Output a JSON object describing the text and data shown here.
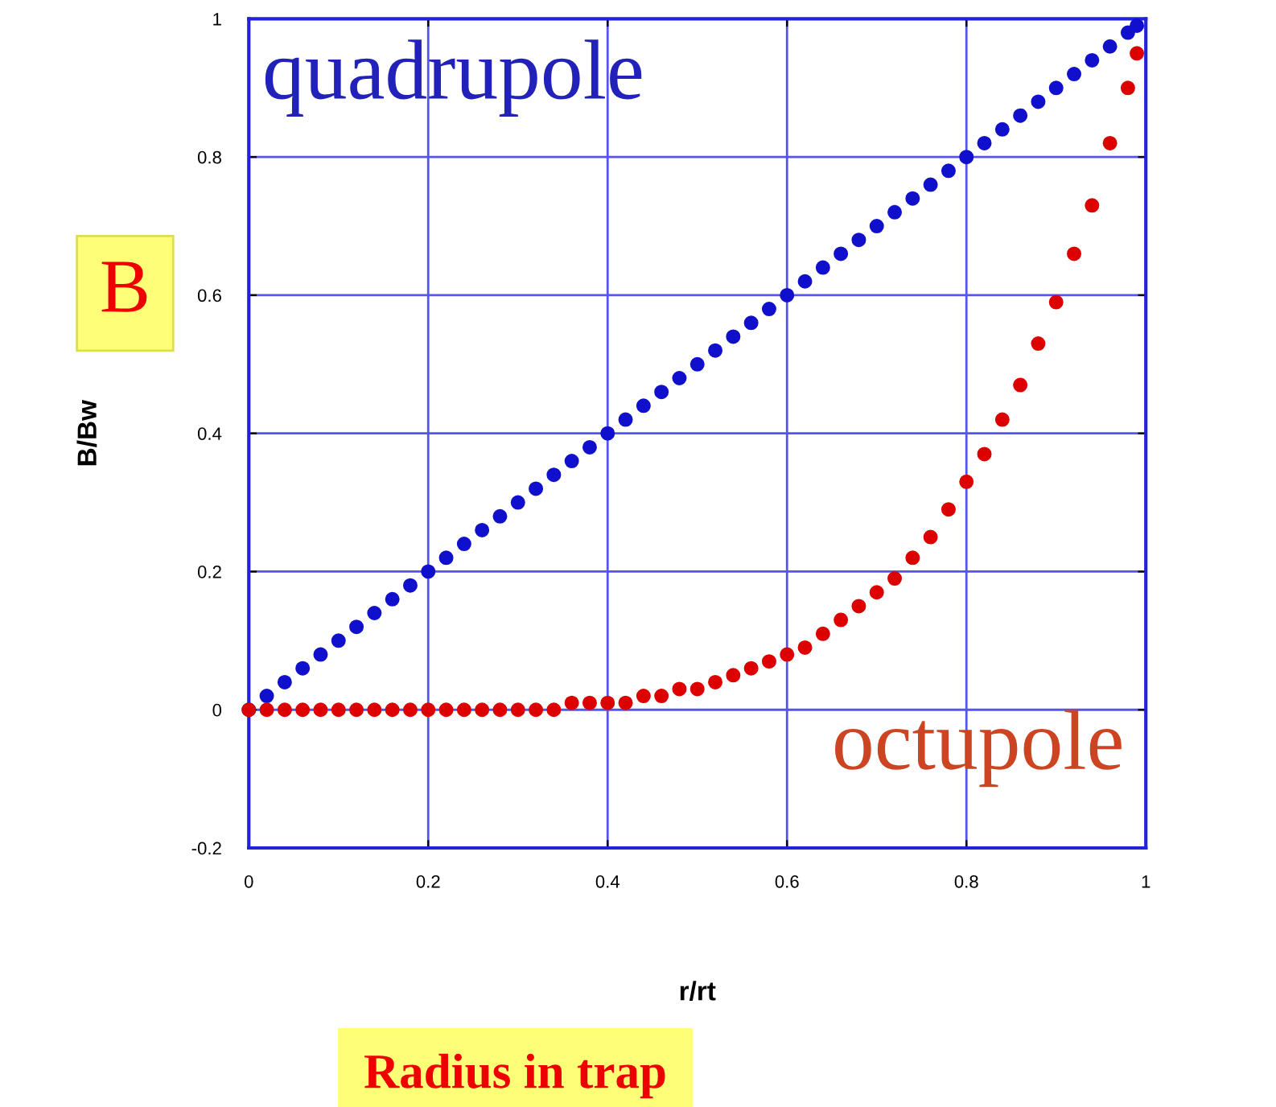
{
  "chart_data": {
    "type": "scatter",
    "xlabel": "r/rt",
    "ylabel": "B/Bw",
    "x": [
      0,
      0.02,
      0.04,
      0.06,
      0.08,
      0.1,
      0.12,
      0.14,
      0.16,
      0.18,
      0.2,
      0.22,
      0.24,
      0.26,
      0.28,
      0.3,
      0.32,
      0.34,
      0.36,
      0.38,
      0.4,
      0.42,
      0.44,
      0.46,
      0.48,
      0.5,
      0.52,
      0.54,
      0.56,
      0.58,
      0.6,
      0.62,
      0.64,
      0.66,
      0.68,
      0.7,
      0.72,
      0.74,
      0.76,
      0.78,
      0.8,
      0.82,
      0.84,
      0.86,
      0.88,
      0.9,
      0.92,
      0.94,
      0.96,
      0.98,
      0.99
    ],
    "series": [
      {
        "color": "#1010cc",
        "values": [
          0,
          0.02,
          0.04,
          0.06,
          0.08,
          0.1,
          0.12,
          0.14,
          0.16,
          0.18,
          0.2,
          0.22,
          0.24,
          0.26,
          0.28,
          0.3,
          0.32,
          0.34,
          0.36,
          0.38,
          0.4,
          0.42,
          0.44,
          0.46,
          0.48,
          0.5,
          0.52,
          0.54,
          0.56,
          0.58,
          0.6,
          0.62,
          0.64,
          0.66,
          0.68,
          0.7,
          0.72,
          0.74,
          0.76,
          0.78,
          0.8,
          0.82,
          0.84,
          0.86,
          0.88,
          0.9,
          0.92,
          0.94,
          0.96,
          0.98,
          0.99
        ]
      },
      {
        "color": "#dd0000",
        "values": [
          0,
          0,
          0,
          0,
          0,
          0,
          0,
          0,
          0,
          0,
          0,
          0,
          0,
          0,
          0,
          0,
          0,
          0,
          0.01,
          0.01,
          0.01,
          0.01,
          0.02,
          0.02,
          0.03,
          0.03,
          0.04,
          0.05,
          0.06,
          0.07,
          0.08,
          0.09,
          0.11,
          0.13,
          0.15,
          0.17,
          0.19,
          0.22,
          0.25,
          0.29,
          0.33,
          0.37,
          0.42,
          0.47,
          0.53,
          0.59,
          0.66,
          0.73,
          0.82,
          0.9,
          0.95
        ]
      }
    ],
    "xlim": [
      0,
      1
    ],
    "ylim": [
      -0.2,
      1
    ],
    "xticks": [
      0,
      0.2,
      0.4,
      0.6,
      0.8,
      1
    ],
    "yticks": [
      -0.2,
      0,
      0.2,
      0.4,
      0.6,
      0.8,
      1
    ],
    "grid": true,
    "marker": "circle",
    "annotations": [
      "quadrupole",
      "octupole",
      "B",
      "Radius in trap"
    ]
  }
}
